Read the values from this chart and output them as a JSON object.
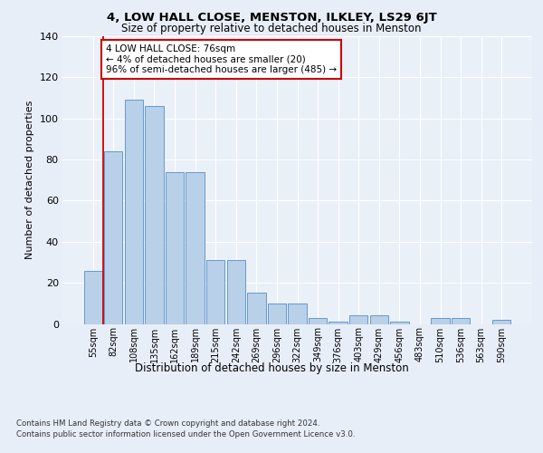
{
  "title": "4, LOW HALL CLOSE, MENSTON, ILKLEY, LS29 6JT",
  "subtitle": "Size of property relative to detached houses in Menston",
  "xlabel": "Distribution of detached houses by size in Menston",
  "ylabel": "Number of detached properties",
  "categories": [
    "55sqm",
    "82sqm",
    "108sqm",
    "135sqm",
    "162sqm",
    "189sqm",
    "215sqm",
    "242sqm",
    "269sqm",
    "296sqm",
    "322sqm",
    "349sqm",
    "376sqm",
    "403sqm",
    "429sqm",
    "456sqm",
    "483sqm",
    "510sqm",
    "536sqm",
    "563sqm",
    "590sqm"
  ],
  "values": [
    26,
    84,
    109,
    106,
    74,
    74,
    31,
    31,
    15,
    10,
    10,
    3,
    1,
    4,
    4,
    1,
    0,
    3,
    3,
    0,
    2
  ],
  "bar_color": "#b8d0e8",
  "bar_edge_color": "#6699cc",
  "marker_color": "#cc0000",
  "annotation_text": "4 LOW HALL CLOSE: 76sqm\n← 4% of detached houses are smaller (20)\n96% of semi-detached houses are larger (485) →",
  "annotation_box_color": "#ffffff",
  "annotation_box_edge": "#cc0000",
  "ylim": [
    0,
    140
  ],
  "yticks": [
    0,
    20,
    40,
    60,
    80,
    100,
    120,
    140
  ],
  "bg_color": "#e8eef8",
  "plot_bg_color": "#eaf0f8",
  "grid_color": "#ffffff",
  "footer_line1": "Contains HM Land Registry data © Crown copyright and database right 2024.",
  "footer_line2": "Contains public sector information licensed under the Open Government Licence v3.0."
}
